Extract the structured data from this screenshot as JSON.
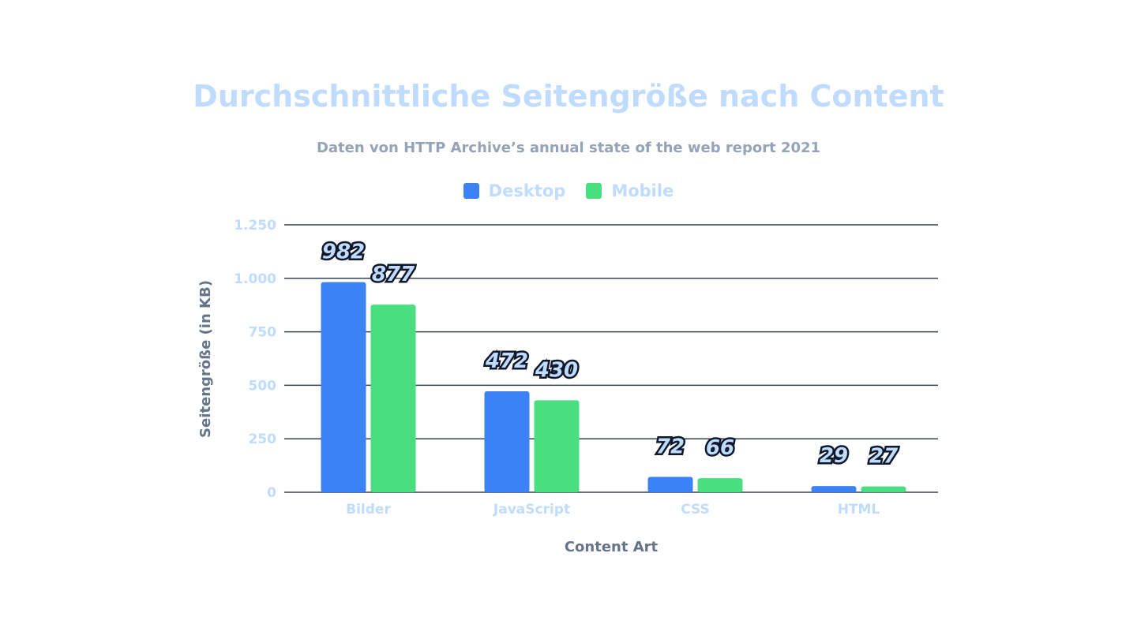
{
  "chart_data": {
    "type": "bar",
    "title": "Durchschnittliche Seitengröße nach Content",
    "subtitle": "Daten von HTTP Archive’s annual state of the web report 2021",
    "xlabel": "Content Art",
    "ylabel": "Seitengröße (in KB)",
    "categories": [
      "Bilder",
      "JavaScript",
      "CSS",
      "HTML"
    ],
    "series": [
      {
        "name": "Desktop",
        "color": "#3b82f6",
        "values": [
          982,
          472,
          72,
          29
        ]
      },
      {
        "name": "Mobile",
        "color": "#4ade80",
        "values": [
          877,
          430,
          66,
          27
        ]
      }
    ],
    "ylim": [
      0,
      1250
    ],
    "yticks": [
      0,
      250,
      500,
      750,
      1000,
      1250
    ],
    "ytick_labels": [
      "0",
      "250",
      "500",
      "750",
      "1.000",
      "1.250"
    ],
    "grid": true,
    "legend_position": "top-center"
  }
}
